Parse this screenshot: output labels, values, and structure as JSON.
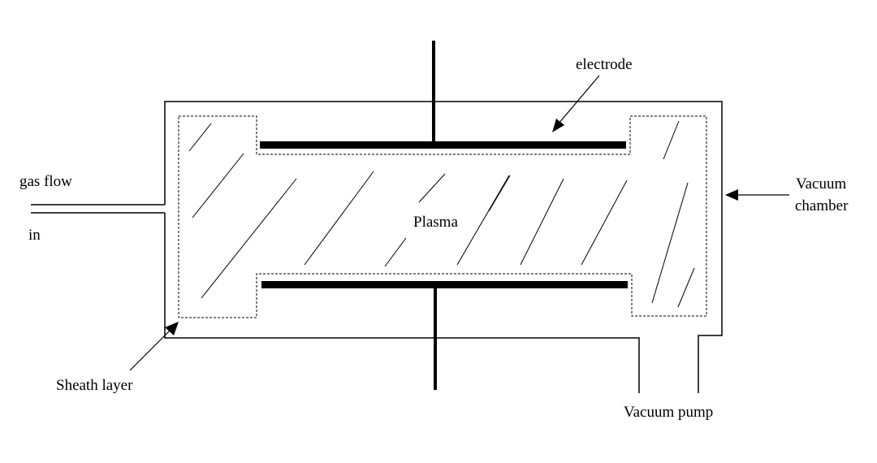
{
  "labels": {
    "electrode": "electrode",
    "gas_flow": "gas flow",
    "in": "in",
    "plasma": "Plasma",
    "vacuum": "Vacuum",
    "chamber": "chamber",
    "sheath_layer": "Sheath layer",
    "vacuum_pump": "Vacuum pump"
  },
  "colors": {
    "line": "#000000",
    "background": "#ffffff"
  }
}
